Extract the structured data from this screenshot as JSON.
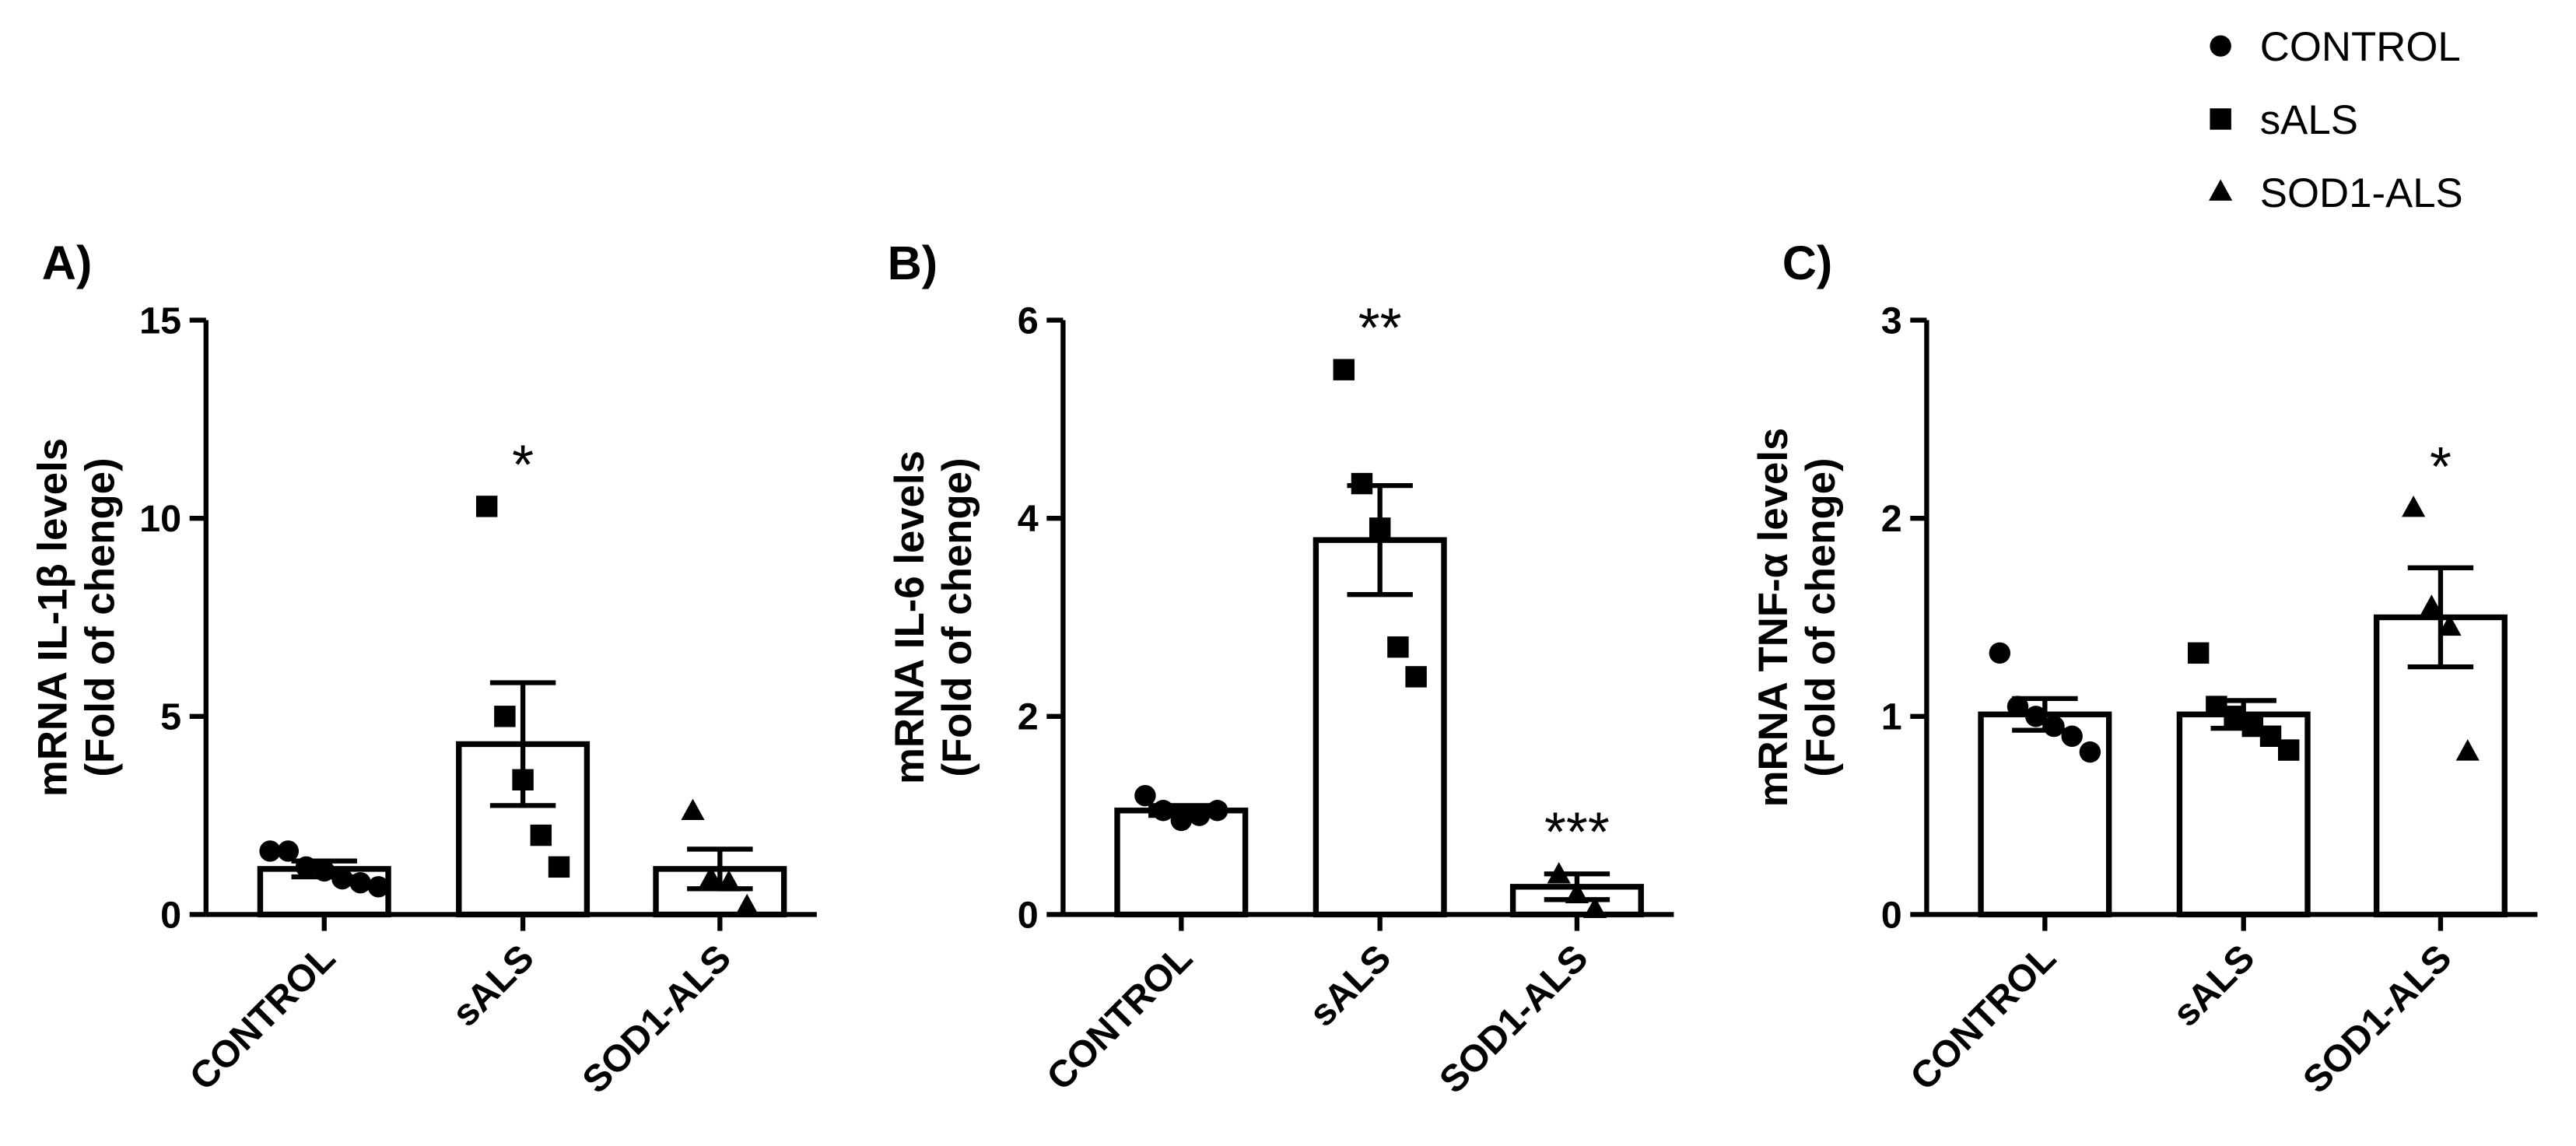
{
  "legend": [
    {
      "name": "CONTROL",
      "marker": "circle"
    },
    {
      "name": "sALS",
      "marker": "square"
    },
    {
      "name": "SOD1-ALS",
      "marker": "triangle"
    }
  ],
  "chart_data": [
    {
      "type": "bar",
      "panel": "A)",
      "ylabel": [
        "mRNA IL-1β levels",
        "(Fold of chenge)"
      ],
      "categories": [
        "CONTROL",
        "sALS",
        "SOD1-ALS"
      ],
      "values": [
        1.15,
        4.3,
        1.15
      ],
      "errors": [
        0.2,
        1.55,
        0.5
      ],
      "points": [
        [
          1.6,
          1.6,
          1.2,
          1.1,
          0.9,
          0.8,
          0.7
        ],
        [
          10.3,
          5.0,
          3.4,
          2.0,
          1.2
        ],
        [
          2.6,
          0.9,
          0.8,
          0.2
        ]
      ],
      "annotations": [
        {
          "category": "sALS",
          "text": "*"
        }
      ],
      "ylim": [
        0,
        15
      ],
      "yticks": [
        0,
        5,
        10,
        15
      ],
      "color": "#000000"
    },
    {
      "type": "bar",
      "panel": "B)",
      "ylabel": [
        "mRNA IL-6 levels",
        "(Fold of chenge)"
      ],
      "categories": [
        "CONTROL",
        "sALS",
        "SOD1-ALS"
      ],
      "values": [
        1.05,
        3.78,
        0.28
      ],
      "errors": [
        0.05,
        0.55,
        0.13
      ],
      "points": [
        [
          1.2,
          1.05,
          0.95,
          1.0,
          1.05
        ],
        [
          5.5,
          4.35,
          3.9,
          2.7,
          2.4
        ],
        [
          0.4,
          0.2,
          0.05
        ]
      ],
      "annotations": [
        {
          "category": "sALS",
          "text": "**"
        },
        {
          "category": "SOD1-ALS",
          "text": "***"
        }
      ],
      "ylim": [
        0,
        6
      ],
      "yticks": [
        0,
        2,
        4,
        6
      ],
      "color": "#000000"
    },
    {
      "type": "bar",
      "panel": "C)",
      "ylabel": [
        "mRNA TNF-α levels",
        "(Fold of chenge)"
      ],
      "categories": [
        "CONTROL",
        "sALS",
        "SOD1-ALS"
      ],
      "values": [
        1.01,
        1.01,
        1.5
      ],
      "errors": [
        0.08,
        0.07,
        0.25
      ],
      "points": [
        [
          1.32,
          1.05,
          1.0,
          0.95,
          0.9,
          0.82
        ],
        [
          1.32,
          1.05,
          1.0,
          0.95,
          0.9,
          0.83
        ],
        [
          2.05,
          1.55,
          1.45,
          0.82
        ]
      ],
      "annotations": [
        {
          "category": "SOD1-ALS",
          "text": "*"
        }
      ],
      "ylim": [
        0,
        3
      ],
      "yticks": [
        0,
        1,
        2,
        3
      ],
      "color": "#000000"
    }
  ]
}
